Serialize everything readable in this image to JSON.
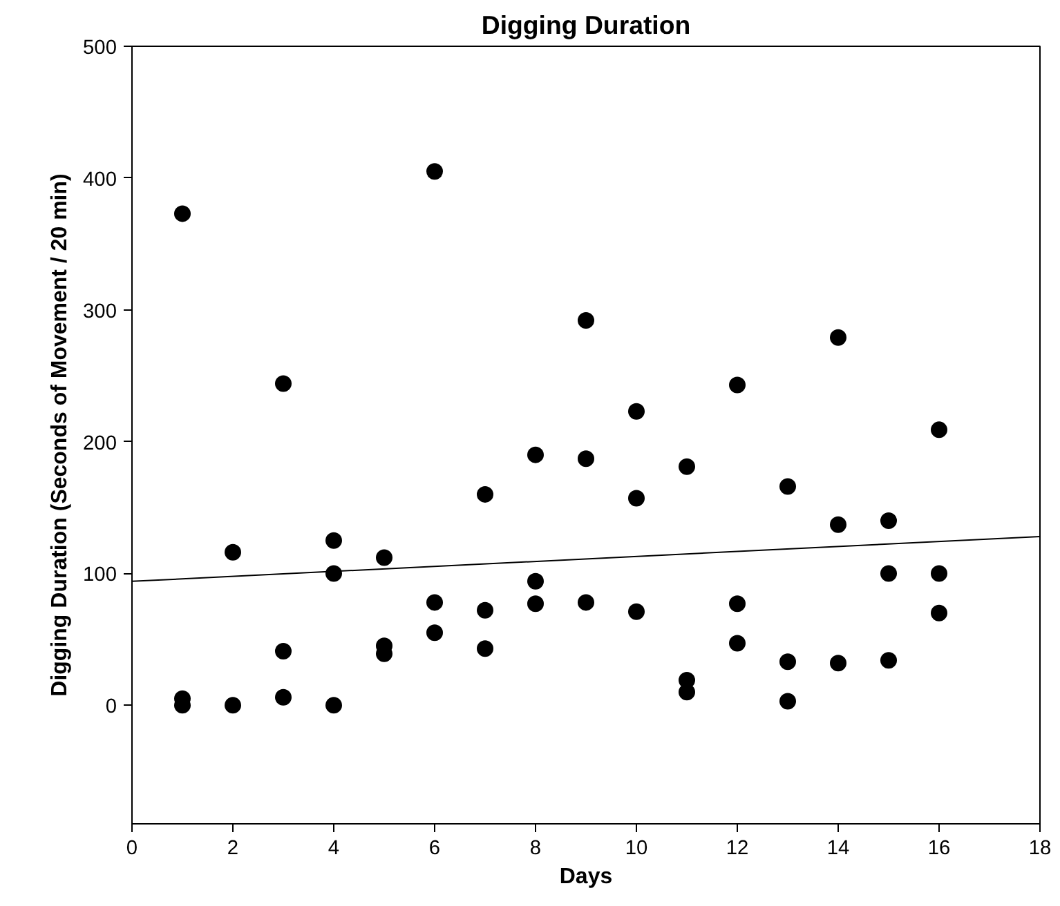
{
  "chart_data": {
    "type": "scatter",
    "title": "Digging Duration",
    "xlabel": "Days",
    "ylabel": "Digging Duration (Seconds of Movement / 20 min)",
    "xlim": [
      0,
      18
    ],
    "xticks": [
      0,
      2,
      4,
      6,
      8,
      10,
      12,
      14,
      16,
      18
    ],
    "ylim": [
      -90,
      500
    ],
    "yticks": [
      0,
      100,
      200,
      300,
      400,
      500
    ],
    "grid": false,
    "marker": "circle",
    "series": [
      {
        "color": "#000000",
        "x": [
          1,
          1,
          1,
          2,
          2,
          3,
          3,
          3,
          4,
          4,
          4,
          5,
          5,
          5,
          6,
          6,
          6,
          7,
          7,
          7,
          8,
          8,
          8,
          9,
          9,
          9,
          10,
          10,
          10,
          11,
          11,
          11,
          12,
          12,
          12,
          13,
          13,
          13,
          14,
          14,
          14,
          15,
          15,
          15,
          16,
          16,
          16
        ],
        "values": [
          373,
          5,
          0,
          116,
          0,
          244,
          41,
          6,
          125,
          100,
          0,
          112,
          45,
          39,
          405,
          78,
          55,
          160,
          72,
          43,
          190,
          94,
          77,
          292,
          187,
          78,
          223,
          157,
          71,
          181,
          19,
          10,
          243,
          77,
          47,
          166,
          33,
          3,
          279,
          137,
          32,
          140,
          100,
          34,
          209,
          100,
          70
        ]
      },
      {
        "type": "line",
        "color": "#000000",
        "line_style": "solid",
        "marker": "none",
        "x": [
          0,
          18
        ],
        "values": [
          94,
          128
        ]
      }
    ]
  }
}
